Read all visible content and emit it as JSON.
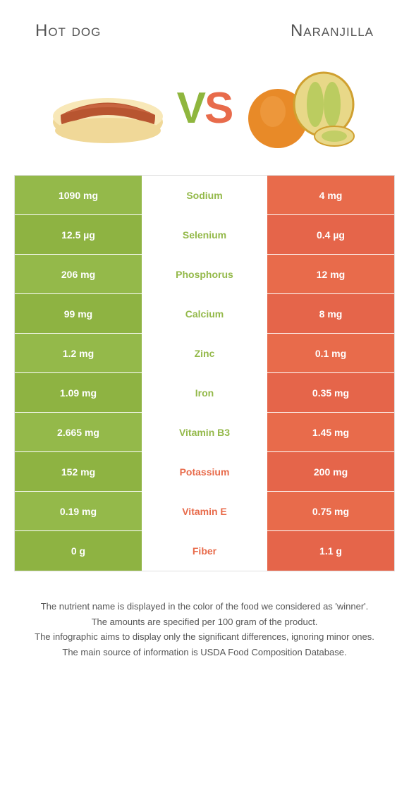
{
  "colors": {
    "left": "#94b94a",
    "right": "#e86b4b",
    "left_alt": "#8eb342",
    "right_alt": "#e5654a"
  },
  "left_title": "Hot dog",
  "right_title": "Naranjilla",
  "vs": {
    "v": "V",
    "s": "S"
  },
  "rows": [
    {
      "nutrient": "Sodium",
      "left": "1090 mg",
      "right": "4 mg",
      "winner": "left"
    },
    {
      "nutrient": "Selenium",
      "left": "12.5 µg",
      "right": "0.4 µg",
      "winner": "left"
    },
    {
      "nutrient": "Phosphorus",
      "left": "206 mg",
      "right": "12 mg",
      "winner": "left"
    },
    {
      "nutrient": "Calcium",
      "left": "99 mg",
      "right": "8 mg",
      "winner": "left"
    },
    {
      "nutrient": "Zinc",
      "left": "1.2 mg",
      "right": "0.1 mg",
      "winner": "left"
    },
    {
      "nutrient": "Iron",
      "left": "1.09 mg",
      "right": "0.35 mg",
      "winner": "left"
    },
    {
      "nutrient": "Vitamin B3",
      "left": "2.665 mg",
      "right": "1.45 mg",
      "winner": "left"
    },
    {
      "nutrient": "Potassium",
      "left": "152 mg",
      "right": "200 mg",
      "winner": "right"
    },
    {
      "nutrient": "Vitamin E",
      "left": "0.19 mg",
      "right": "0.75 mg",
      "winner": "right"
    },
    {
      "nutrient": "Fiber",
      "left": "0 g",
      "right": "1.1 g",
      "winner": "right"
    }
  ],
  "footnotes": [
    "The nutrient name is displayed in the color of the food we considered as 'winner'.",
    "The amounts are specified per 100 gram of the product.",
    "The infographic aims to display only the significant differences, ignoring minor ones.",
    "The main source of information is USDA Food Composition Database."
  ]
}
